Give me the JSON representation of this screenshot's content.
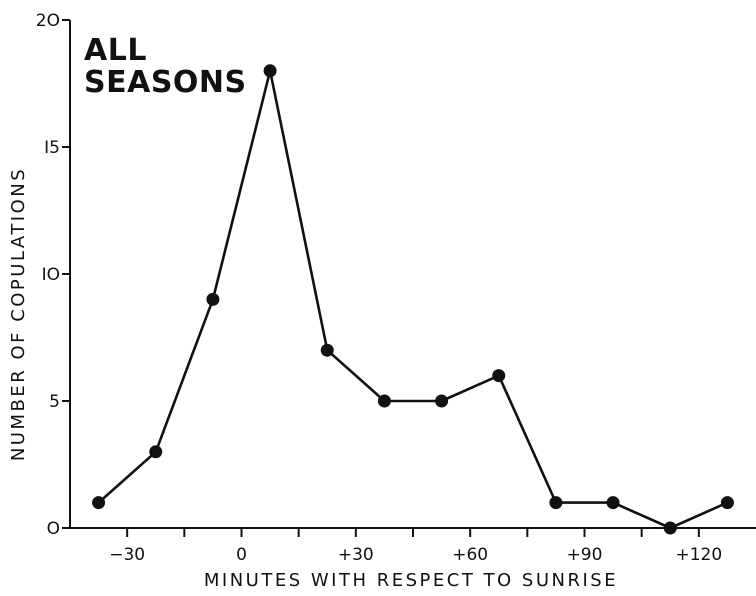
{
  "chart_data": {
    "type": "line",
    "title": "ALL\nSEASONS",
    "xlabel": "MINUTES WITH RESPECT TO SUNRISE",
    "ylabel": "NUMBER OF COPULATIONS",
    "xlim": [
      -45,
      135
    ],
    "ylim": [
      0,
      20
    ],
    "x_ticks": [
      -30,
      -15,
      0,
      15,
      30,
      45,
      60,
      75,
      90,
      105,
      120
    ],
    "x_tick_labels": [
      {
        "value": -30,
        "label": "−30"
      },
      {
        "value": 0,
        "label": "0"
      },
      {
        "value": 30,
        "label": "+30"
      },
      {
        "value": 60,
        "label": "+60"
      },
      {
        "value": 90,
        "label": "+90"
      },
      {
        "value": 120,
        "label": "+120"
      }
    ],
    "y_ticks": [
      0,
      5,
      10,
      15,
      20
    ],
    "y_tick_labels": [
      {
        "value": 0,
        "label": "O"
      },
      {
        "value": 5,
        "label": "5"
      },
      {
        "value": 10,
        "label": "IO"
      },
      {
        "value": 15,
        "label": "I5"
      },
      {
        "value": 20,
        "label": "2O"
      }
    ],
    "grid": false,
    "series": [
      {
        "x": [
          -37.5,
          -22.5,
          -7.5,
          7.5,
          22.5,
          37.5,
          52.5,
          67.5,
          82.5,
          97.5,
          112.5,
          127.5
        ],
        "values": [
          1,
          3,
          9,
          18,
          7,
          5,
          5,
          6,
          1,
          1,
          0,
          1
        ],
        "color": "#111111"
      }
    ]
  }
}
